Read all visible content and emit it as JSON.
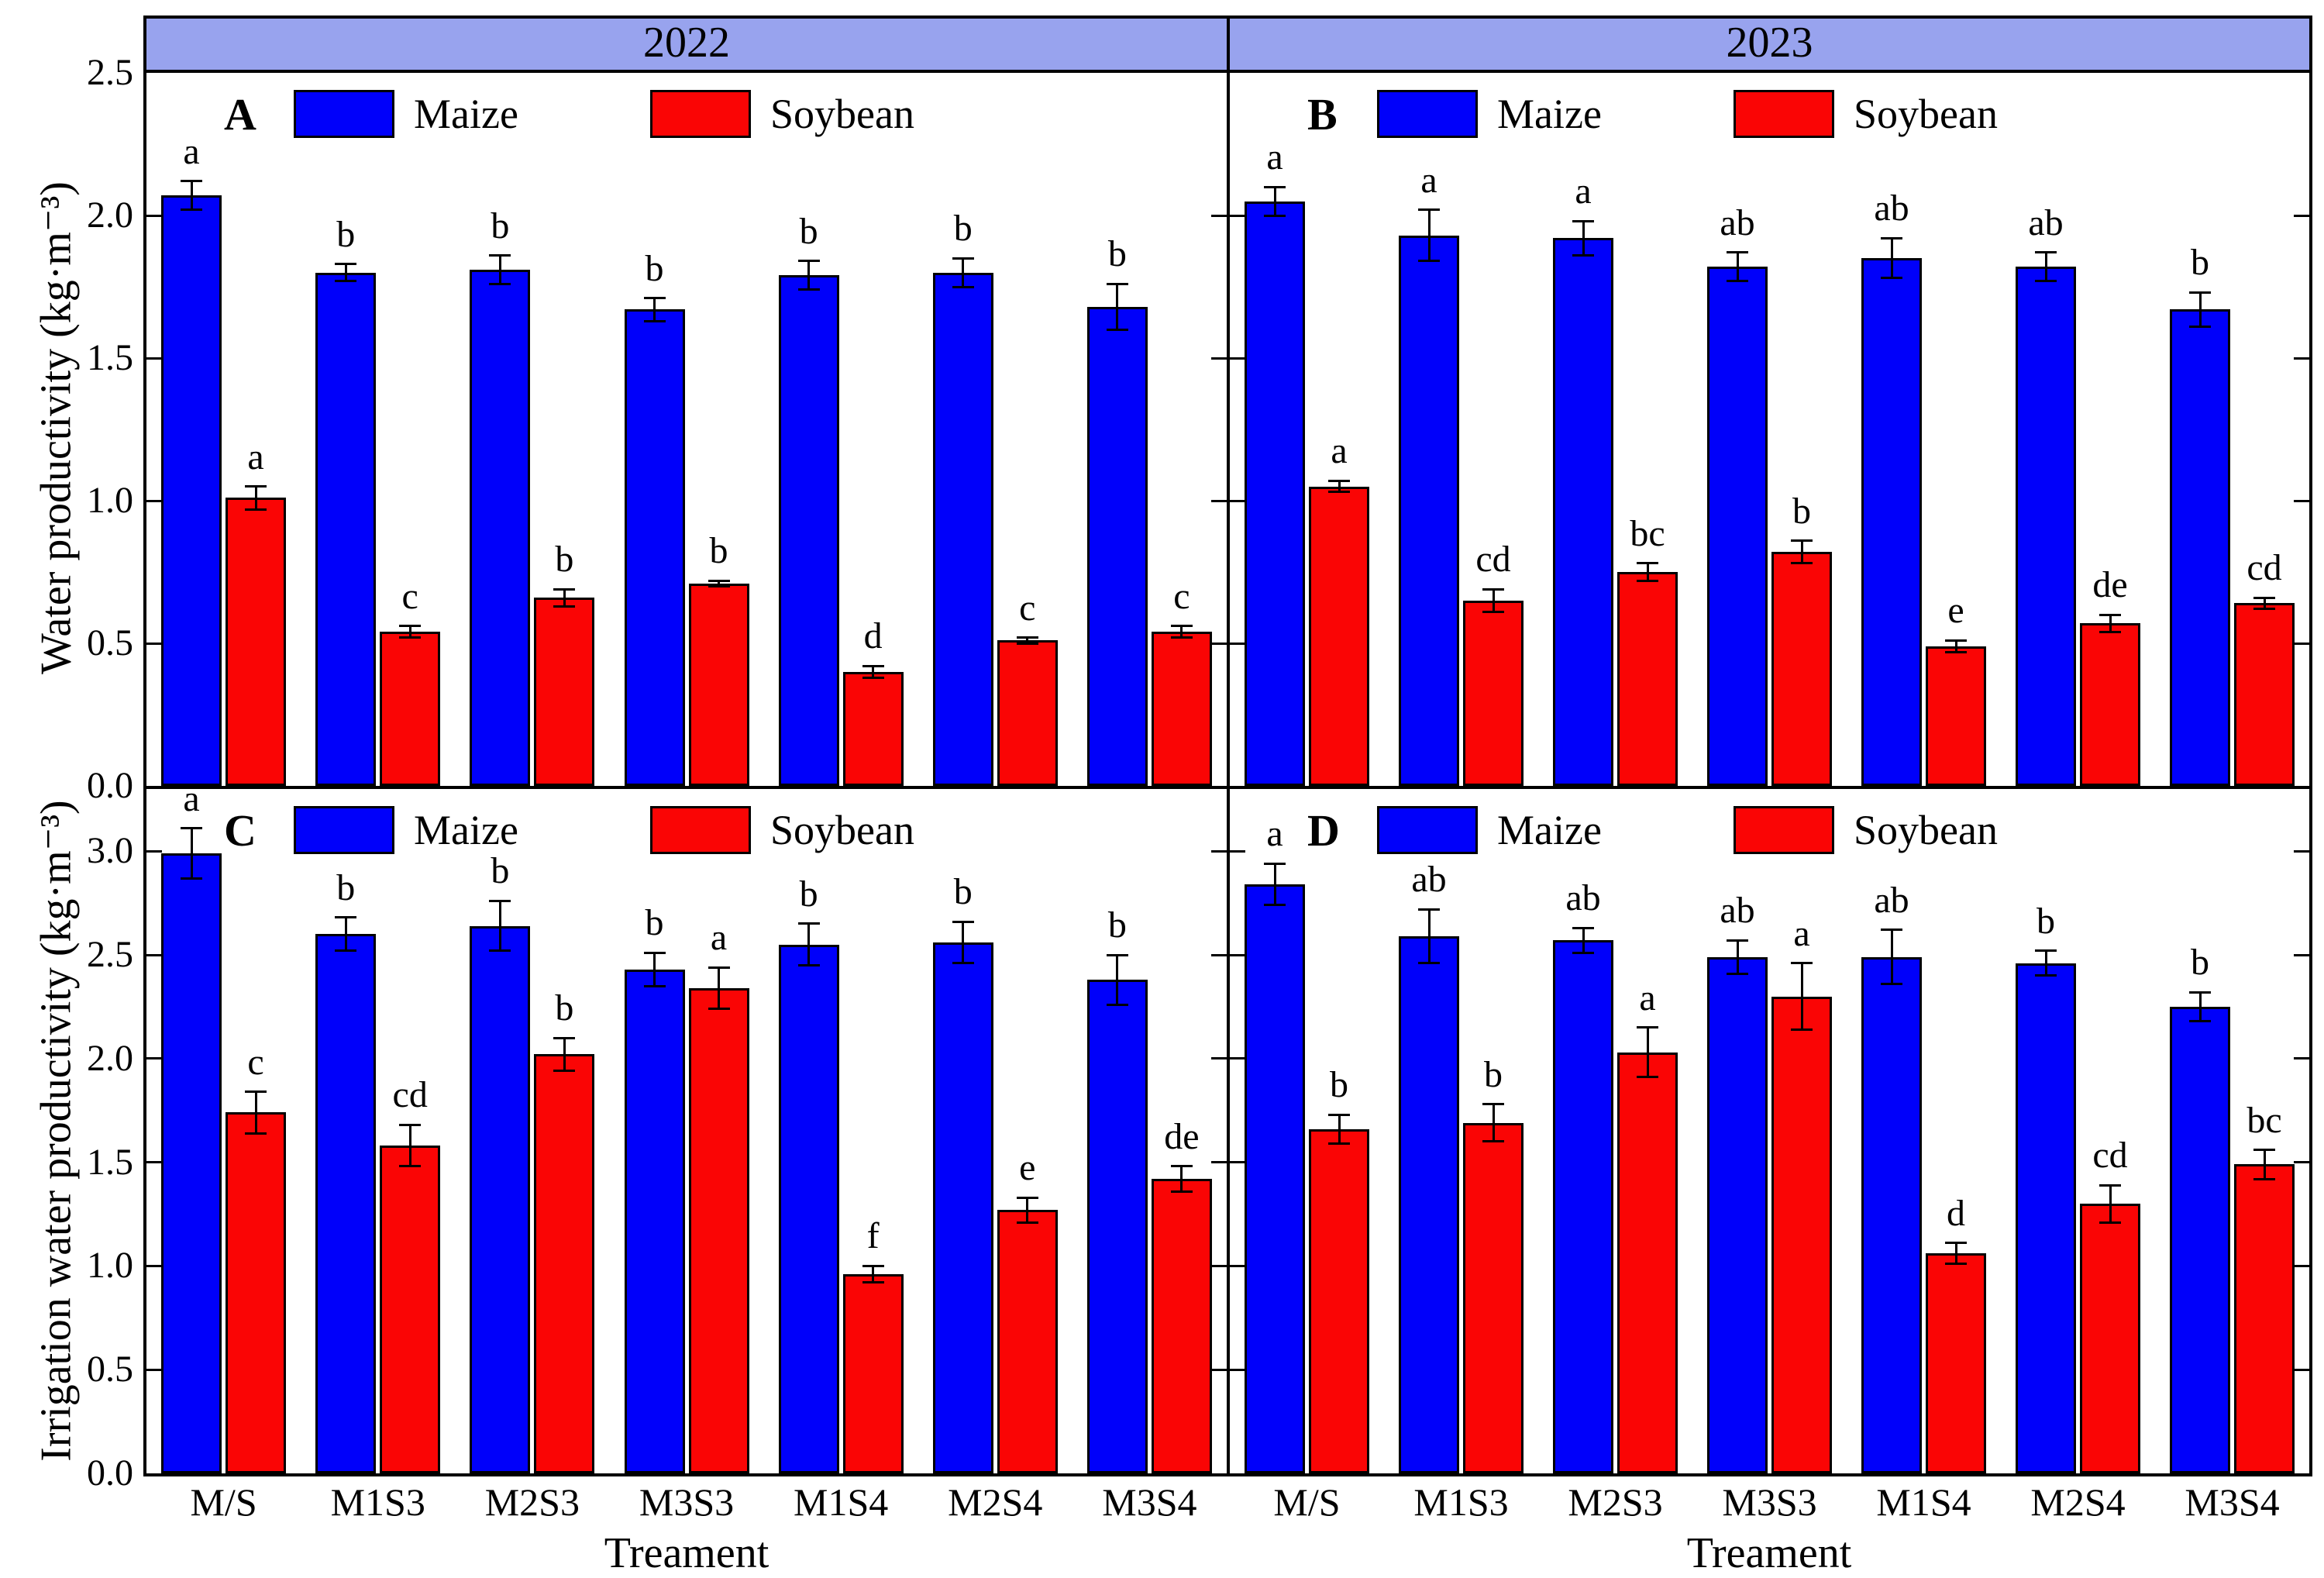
{
  "figure": {
    "years": [
      "2022",
      "2023"
    ],
    "x_axis_title_left": "Treament",
    "x_axis_title_right": "Treament",
    "ylabel_top": "Water productivity (kg·m⁻³)",
    "ylabel_bottom": "Irrigation water productivity (kg·m⁻³)",
    "categories": [
      "M/S",
      "M1S3",
      "M2S3",
      "M3S3",
      "M1S4",
      "M2S4",
      "M3S4"
    ],
    "legend": {
      "maize": "Maize",
      "soybean": "Soybean"
    },
    "colors": {
      "maize": "#0000FA",
      "soybean": "#FA0505",
      "header_bg": "#98A3EE",
      "axis": "#000000"
    }
  },
  "chart_data": [
    {
      "type": "bar",
      "id": "A",
      "year": "2022",
      "position": "top-left",
      "ylabel": "Water productivity (kg·m⁻³)",
      "ylim": [
        0,
        2.5
      ],
      "yticks": [
        0.0,
        0.5,
        1.0,
        1.5,
        2.0,
        2.5
      ],
      "show_ytick_labels": true,
      "show_xtick_labels": false,
      "categories": [
        "M/S",
        "M1S3",
        "M2S3",
        "M3S3",
        "M1S4",
        "M2S4",
        "M3S4"
      ],
      "series": [
        {
          "name": "Maize",
          "color": "maize",
          "values": [
            2.07,
            1.8,
            1.81,
            1.67,
            1.79,
            1.8,
            1.68
          ],
          "errors": [
            0.05,
            0.03,
            0.05,
            0.04,
            0.05,
            0.05,
            0.08
          ],
          "letters": [
            "a",
            "b",
            "b",
            "b",
            "b",
            "b",
            "b"
          ]
        },
        {
          "name": "Soybean",
          "color": "soybean",
          "values": [
            1.01,
            0.54,
            0.66,
            0.71,
            0.4,
            0.51,
            0.54
          ],
          "errors": [
            0.04,
            0.02,
            0.03,
            0.01,
            0.02,
            0.01,
            0.02
          ],
          "letters": [
            "a",
            "c",
            "b",
            "b",
            "d",
            "c",
            "c"
          ]
        }
      ]
    },
    {
      "type": "bar",
      "id": "B",
      "year": "2023",
      "position": "top-right",
      "ylabel": "Water productivity (kg·m⁻³)",
      "ylim": [
        0,
        2.5
      ],
      "yticks": [
        0.0,
        0.5,
        1.0,
        1.5,
        2.0,
        2.5
      ],
      "show_ytick_labels": false,
      "show_xtick_labels": false,
      "categories": [
        "M/S",
        "M1S3",
        "M2S3",
        "M3S3",
        "M1S4",
        "M2S4",
        "M3S4"
      ],
      "series": [
        {
          "name": "Maize",
          "color": "maize",
          "values": [
            2.05,
            1.93,
            1.92,
            1.82,
            1.85,
            1.82,
            1.67
          ],
          "errors": [
            0.05,
            0.09,
            0.06,
            0.05,
            0.07,
            0.05,
            0.06
          ],
          "letters": [
            "a",
            "a",
            "a",
            "ab",
            "ab",
            "ab",
            "b"
          ]
        },
        {
          "name": "Soybean",
          "color": "soybean",
          "values": [
            1.05,
            0.65,
            0.75,
            0.82,
            0.49,
            0.57,
            0.64
          ],
          "errors": [
            0.02,
            0.04,
            0.03,
            0.04,
            0.02,
            0.03,
            0.02
          ],
          "letters": [
            "a",
            "cd",
            "bc",
            "b",
            "e",
            "de",
            "cd"
          ]
        }
      ]
    },
    {
      "type": "bar",
      "id": "C",
      "year": "2022",
      "position": "bottom-left",
      "ylabel": "Irrigation water productivity (kg·m⁻³)",
      "ylim": [
        0,
        3.3
      ],
      "yticks": [
        0.0,
        0.5,
        1.0,
        1.5,
        2.0,
        2.5,
        3.0
      ],
      "show_ytick_labels": true,
      "show_xtick_labels": true,
      "categories": [
        "M/S",
        "M1S3",
        "M2S3",
        "M3S3",
        "M1S4",
        "M2S4",
        "M3S4"
      ],
      "series": [
        {
          "name": "Maize",
          "color": "maize",
          "values": [
            2.99,
            2.6,
            2.64,
            2.43,
            2.55,
            2.56,
            2.38
          ],
          "errors": [
            0.12,
            0.08,
            0.12,
            0.08,
            0.1,
            0.1,
            0.12
          ],
          "letters": [
            "a",
            "b",
            "b",
            "b",
            "b",
            "b",
            "b"
          ]
        },
        {
          "name": "Soybean",
          "color": "soybean",
          "values": [
            1.74,
            1.58,
            2.02,
            2.34,
            0.96,
            1.27,
            1.42
          ],
          "errors": [
            0.1,
            0.1,
            0.08,
            0.1,
            0.04,
            0.06,
            0.06
          ],
          "letters": [
            "c",
            "cd",
            "b",
            "a",
            "f",
            "e",
            "de"
          ]
        }
      ]
    },
    {
      "type": "bar",
      "id": "D",
      "year": "2023",
      "position": "bottom-right",
      "ylabel": "Irrigation water productivity (kg·m⁻³)",
      "ylim": [
        0,
        3.3
      ],
      "yticks": [
        0.0,
        0.5,
        1.0,
        1.5,
        2.0,
        2.5,
        3.0
      ],
      "show_ytick_labels": false,
      "show_xtick_labels": true,
      "categories": [
        "M/S",
        "M1S3",
        "M2S3",
        "M3S3",
        "M1S4",
        "M2S4",
        "M3S4"
      ],
      "series": [
        {
          "name": "Maize",
          "color": "maize",
          "values": [
            2.84,
            2.59,
            2.57,
            2.49,
            2.49,
            2.46,
            2.25
          ],
          "errors": [
            0.1,
            0.13,
            0.06,
            0.08,
            0.13,
            0.06,
            0.07
          ],
          "letters": [
            "a",
            "ab",
            "ab",
            "ab",
            "ab",
            "b",
            "b"
          ]
        },
        {
          "name": "Soybean",
          "color": "soybean",
          "values": [
            1.66,
            1.69,
            2.03,
            2.3,
            1.06,
            1.3,
            1.49
          ],
          "errors": [
            0.07,
            0.09,
            0.12,
            0.16,
            0.05,
            0.09,
            0.07
          ],
          "letters": [
            "b",
            "b",
            "a",
            "a",
            "d",
            "cd",
            "bc"
          ]
        }
      ]
    }
  ]
}
